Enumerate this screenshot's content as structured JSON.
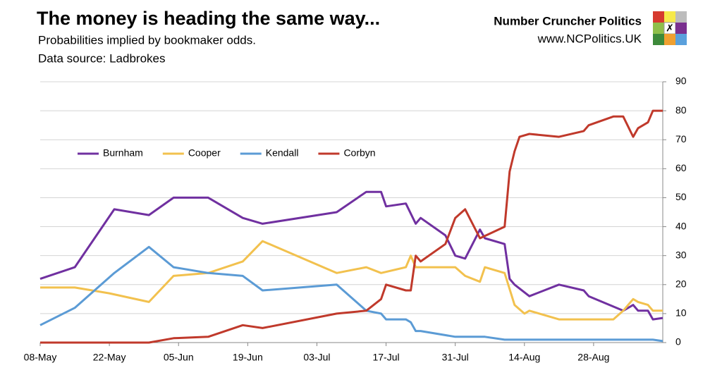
{
  "chart_data": {
    "type": "line",
    "title": "The money is heading the same way...",
    "subtitle": "Probabilities implied by bookmaker odds.",
    "source": "Data source: Ladbrokes",
    "brand": "Number Cruncher Politics",
    "url": "www.NCPolitics.UK",
    "xlim": [
      "08-May",
      "11-Sep"
    ],
    "xticks": [
      "08-May",
      "22-May",
      "05-Jun",
      "19-Jun",
      "03-Jul",
      "17-Jul",
      "31-Jul",
      "14-Aug",
      "28-Aug"
    ],
    "ylim": [
      0,
      90
    ],
    "yticks": [
      0,
      10,
      20,
      30,
      40,
      50,
      60,
      70,
      80,
      90
    ],
    "grid": true,
    "legend": "upper left",
    "series": [
      {
        "name": "Burnham",
        "color": "#7030a0",
        "x": [
          "08-May",
          "15-May",
          "23-May",
          "30-May",
          "04-Jun",
          "11-Jun",
          "18-Jun",
          "22-Jun",
          "07-Jul",
          "13-Jul",
          "16-Jul",
          "17-Jul",
          "21-Jul",
          "23-Jul",
          "24-Jul",
          "29-Jul",
          "31-Jul",
          "02-Aug",
          "05-Aug",
          "06-Aug",
          "10-Aug",
          "11-Aug",
          "12-Aug",
          "15-Aug",
          "21-Aug",
          "26-Aug",
          "27-Aug",
          "03-Sep",
          "05-Sep",
          "06-Sep",
          "08-Sep",
          "09-Sep",
          "11-Sep"
        ],
        "values": [
          22,
          26,
          46,
          44,
          50,
          50,
          43,
          41,
          45,
          52,
          52,
          47,
          48,
          41,
          43,
          37,
          30,
          29,
          39,
          36,
          34,
          22,
          20,
          16,
          20,
          18,
          16,
          11,
          13,
          11,
          11,
          8,
          8.5
        ]
      },
      {
        "name": "Cooper",
        "color": "#f2c14e",
        "x": [
          "08-May",
          "15-May",
          "22-May",
          "30-May",
          "04-Jun",
          "11-Jun",
          "18-Jun",
          "22-Jun",
          "07-Jul",
          "13-Jul",
          "16-Jul",
          "21-Jul",
          "22-Jul",
          "23-Jul",
          "24-Jul",
          "31-Jul",
          "02-Aug",
          "05-Aug",
          "06-Aug",
          "10-Aug",
          "12-Aug",
          "14-Aug",
          "15-Aug",
          "21-Aug",
          "01-Sep",
          "03-Sep",
          "05-Sep",
          "06-Sep",
          "08-Sep",
          "09-Sep",
          "11-Sep"
        ],
        "values": [
          19,
          19,
          17,
          14,
          23,
          24,
          28,
          35,
          24,
          26,
          24,
          26,
          30,
          26,
          26,
          26,
          23,
          21,
          26,
          24,
          13,
          10,
          11,
          8,
          8,
          11,
          15,
          14,
          13,
          11,
          11
        ]
      },
      {
        "name": "Kendall",
        "color": "#5b9bd5",
        "x": [
          "08-May",
          "15-May",
          "23-May",
          "30-May",
          "04-Jun",
          "11-Jun",
          "18-Jun",
          "22-Jun",
          "07-Jul",
          "13-Jul",
          "16-Jul",
          "17-Jul",
          "21-Jul",
          "22-Jul",
          "23-Jul",
          "24-Jul",
          "31-Jul",
          "06-Aug",
          "10-Aug",
          "09-Sep",
          "11-Sep"
        ],
        "values": [
          6,
          12,
          24,
          33,
          26,
          24,
          23,
          18,
          20,
          11,
          10,
          8,
          8,
          7,
          4,
          4,
          2,
          2,
          1,
          1,
          0.5
        ]
      },
      {
        "name": "Corbyn",
        "color": "#c0392b",
        "x": [
          "08-May",
          "30-May",
          "04-Jun",
          "11-Jun",
          "18-Jun",
          "22-Jun",
          "07-Jul",
          "13-Jul",
          "16-Jul",
          "17-Jul",
          "21-Jul",
          "22-Jul",
          "23-Jul",
          "24-Jul",
          "29-Jul",
          "31-Jul",
          "02-Aug",
          "05-Aug",
          "10-Aug",
          "11-Aug",
          "12-Aug",
          "13-Aug",
          "15-Aug",
          "21-Aug",
          "26-Aug",
          "27-Aug",
          "01-Sep",
          "03-Sep",
          "05-Sep",
          "06-Sep",
          "08-Sep",
          "09-Sep",
          "11-Sep"
        ],
        "values": [
          0,
          0,
          1.5,
          2,
          6,
          5,
          10,
          11,
          15,
          20,
          18,
          18,
          30,
          28,
          34,
          43,
          46,
          36,
          40,
          59,
          66,
          71,
          72,
          71,
          73,
          75,
          78,
          78,
          71,
          74,
          76,
          80,
          80
        ]
      }
    ]
  }
}
